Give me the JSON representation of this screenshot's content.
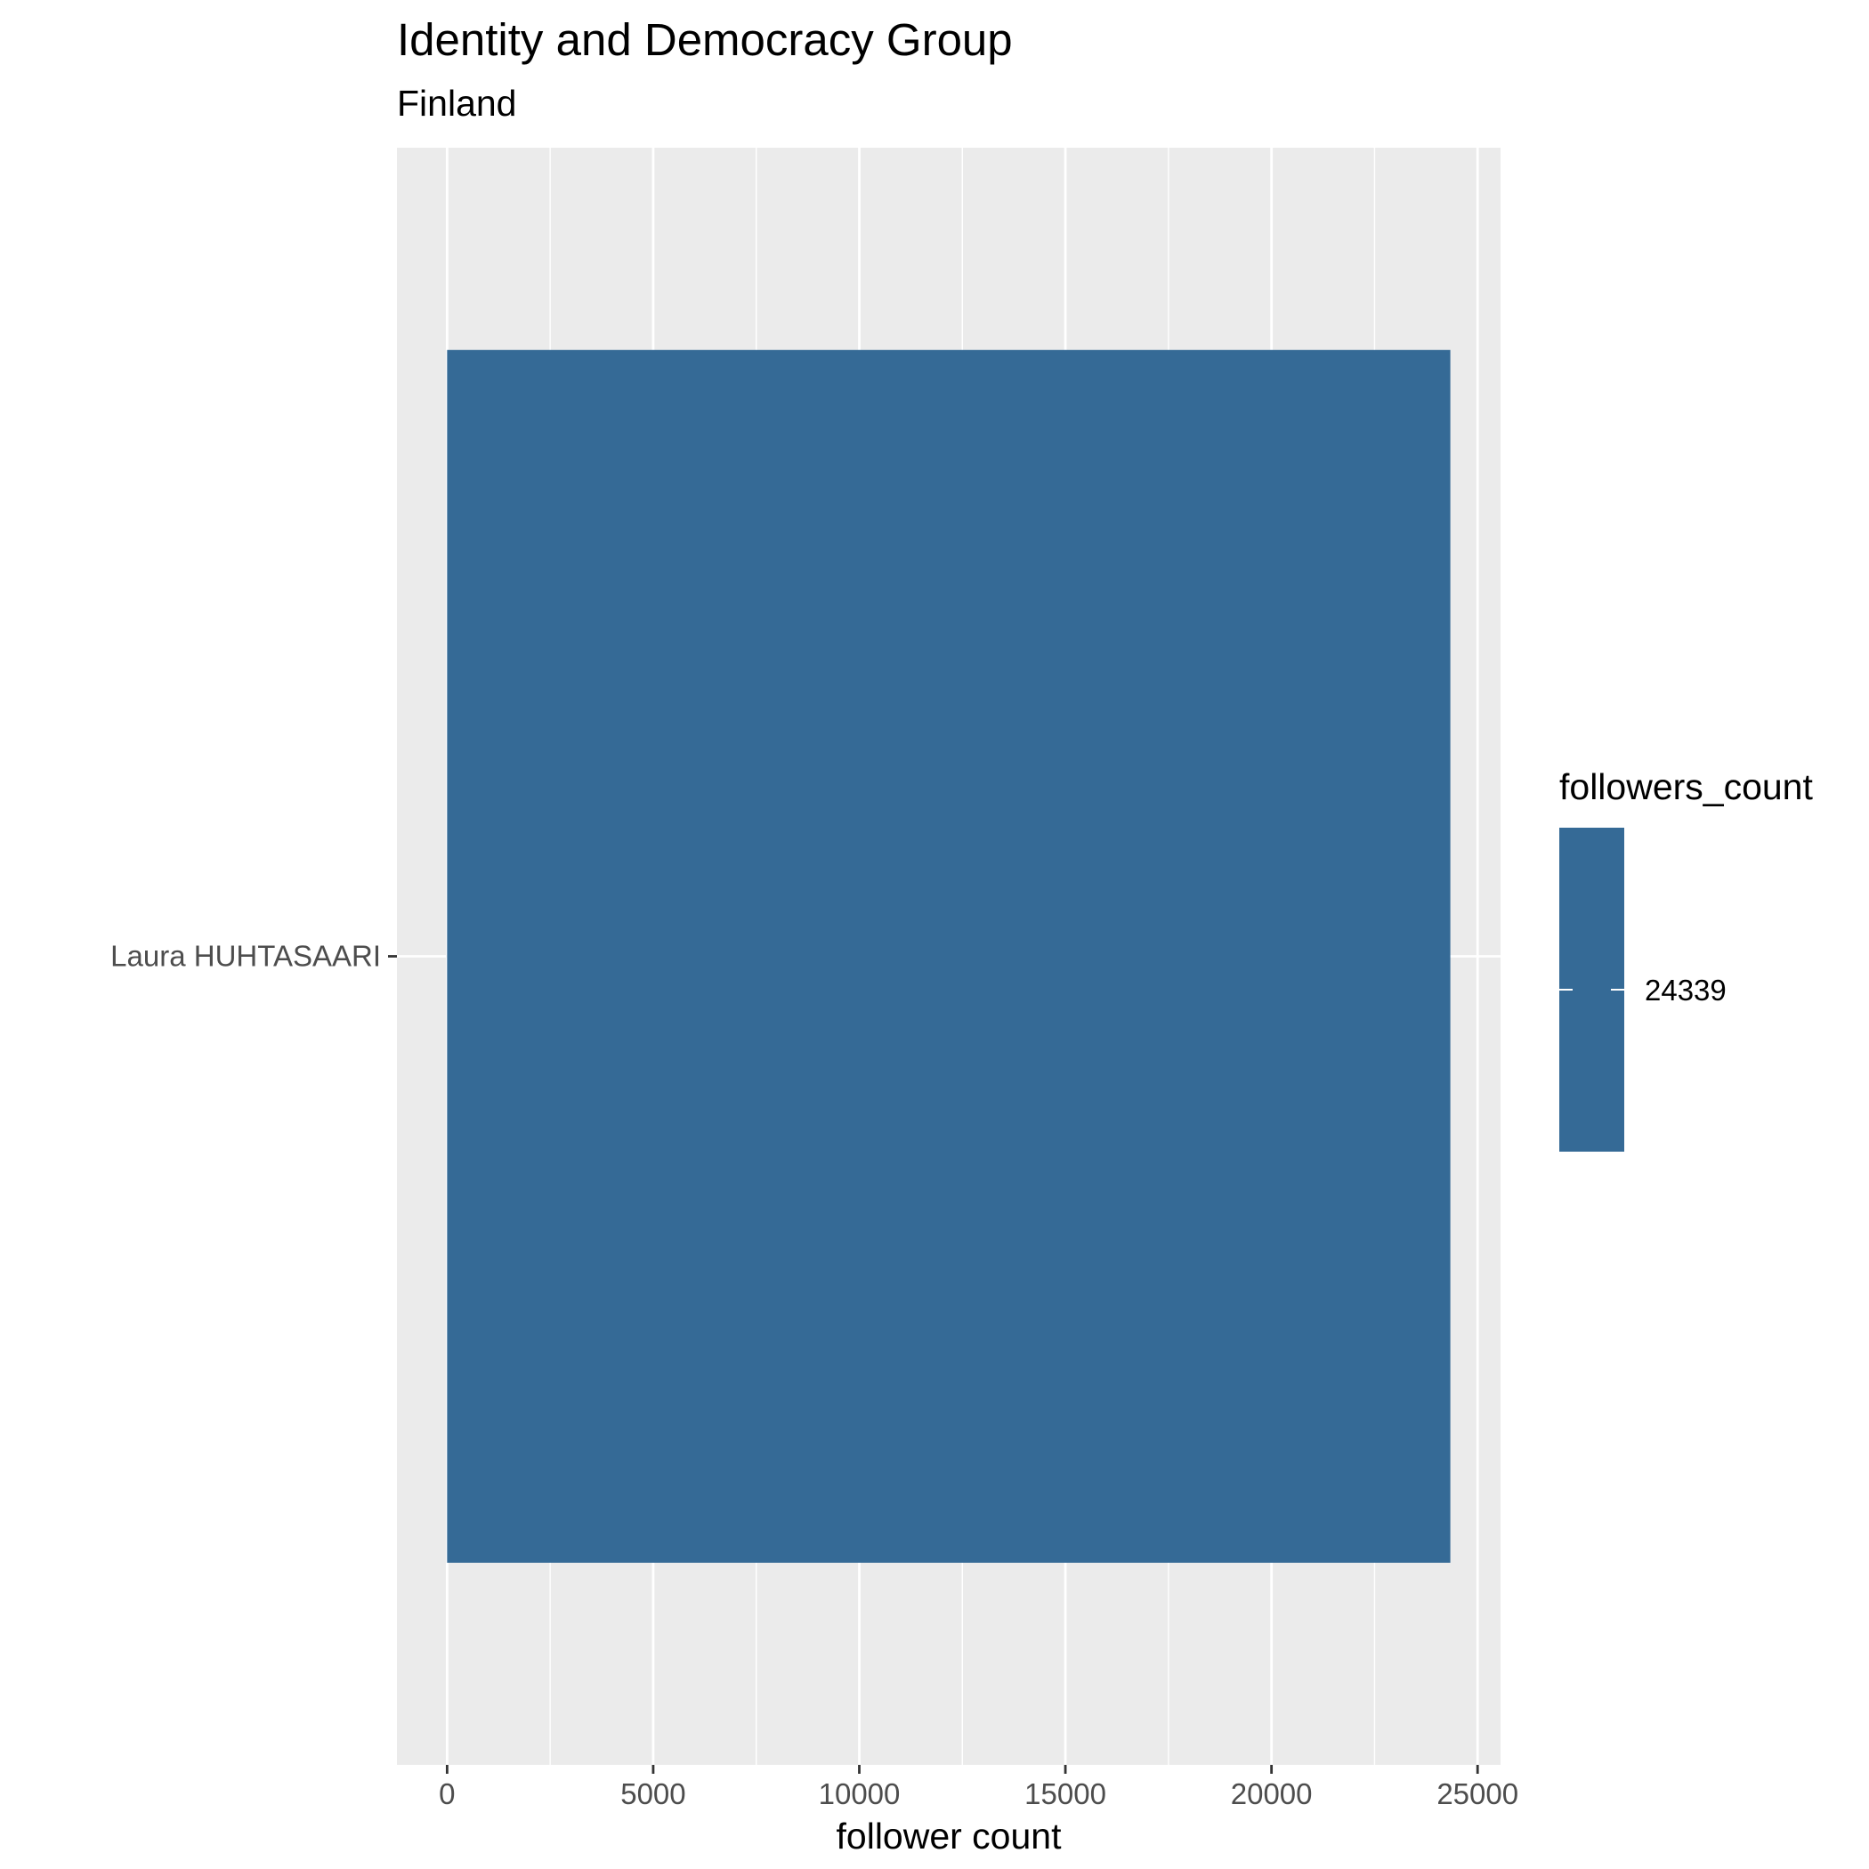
{
  "chart_data": {
    "type": "bar",
    "orientation": "horizontal",
    "title": "Identity and Democracy Group",
    "subtitle": "Finland",
    "xlabel": "follower count",
    "ylabel": "",
    "categories": [
      "Laura HUHTASAARI"
    ],
    "values": [
      24339
    ],
    "xlim": [
      -1217,
      25557
    ],
    "x_ticks": [
      0,
      5000,
      10000,
      15000,
      20000,
      25000
    ],
    "x_tick_labels": [
      "0",
      "5000",
      "10000",
      "15000",
      "20000",
      "25000"
    ],
    "grid": true,
    "legend": {
      "title": "followers_count",
      "position": "right",
      "labels": [
        "24339"
      ]
    },
    "colors": {
      "bar": "#356a96",
      "panel_background": "#ebebeb",
      "grid_major": "#ffffff",
      "tick_text": "#4d4d4d",
      "text": "#000000"
    }
  }
}
